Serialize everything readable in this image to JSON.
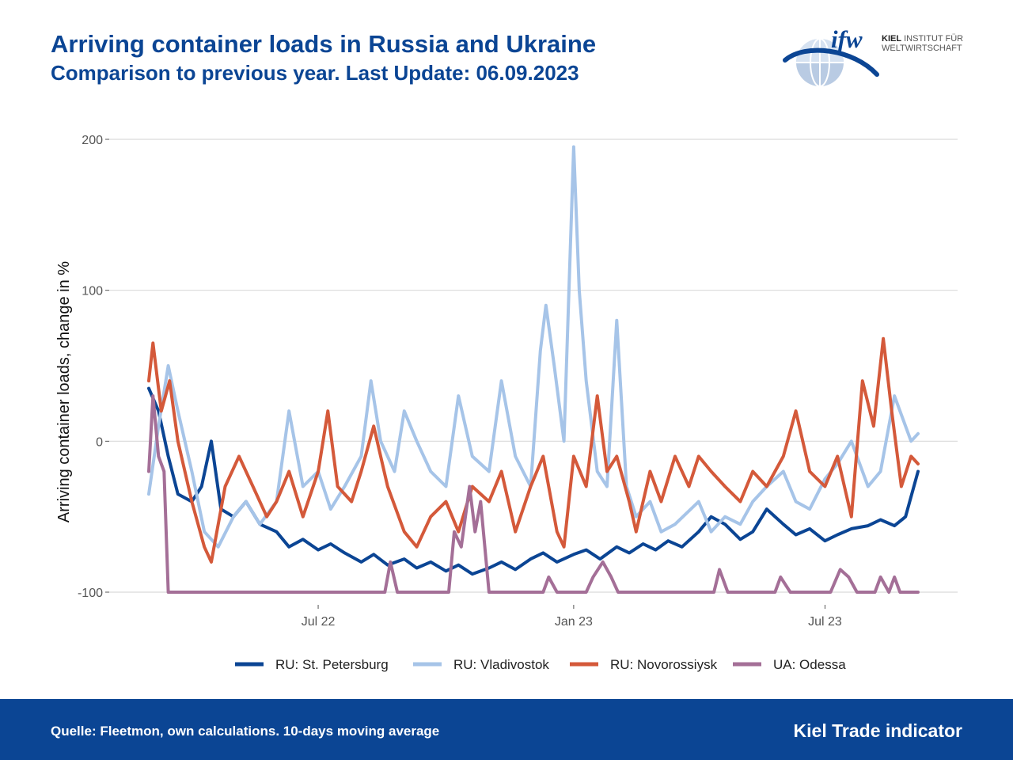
{
  "header": {
    "title": "Arriving container loads in Russia and Ukraine",
    "subtitle": "Comparison to previous year. Last Update: 06.09.2023"
  },
  "logo": {
    "mark": "ifw",
    "line1_bold": "KIEL",
    "line1_rest": " INSTITUT FÜR",
    "line2": "WELTWIRTSCHAFT",
    "icon": "globe-icon"
  },
  "footer": {
    "source": "Quelle: Fleetmon, own calculations. 10-days moving average",
    "brand": "Kiel Trade indicator"
  },
  "colors": {
    "st_petersburg": "#0b4594",
    "vladivostok": "#a6c4e8",
    "novorossiysk": "#d4593a",
    "odessa": "#a46f97",
    "brand_blue": "#0b4594",
    "grid": "#d9d9d9"
  },
  "chart_data": {
    "type": "line",
    "ylabel": "Arriving container loads, change in %",
    "xlabel": "",
    "ylim": [
      -100,
      200
    ],
    "yticks": [
      200,
      100,
      0,
      -100
    ],
    "ytick_labels": [
      "200",
      "100",
      "0",
      "-100"
    ],
    "xticks": [
      "2022-07-01",
      "2023-01-01",
      "2023-07-01"
    ],
    "xtick_labels": [
      "Jul 22",
      "Jan 23",
      "Jul 23"
    ],
    "xrange": [
      "2022-03-01",
      "2023-09-06"
    ],
    "grid": "horizontal",
    "legend_position": "bottom",
    "series": [
      {
        "name": "RU: St. Petersburg",
        "points": [
          [
            "2022-03-01",
            35
          ],
          [
            "2022-03-08",
            20
          ],
          [
            "2022-03-15",
            -10
          ],
          [
            "2022-03-22",
            -35
          ],
          [
            "2022-04-01",
            -40
          ],
          [
            "2022-04-08",
            -30
          ],
          [
            "2022-04-15",
            0
          ],
          [
            "2022-04-22",
            -45
          ],
          [
            "2022-05-01",
            -50
          ],
          [
            "2022-05-10",
            -40
          ],
          [
            "2022-05-20",
            -55
          ],
          [
            "2022-06-01",
            -60
          ],
          [
            "2022-06-10",
            -70
          ],
          [
            "2022-06-20",
            -65
          ],
          [
            "2022-07-01",
            -72
          ],
          [
            "2022-07-10",
            -68
          ],
          [
            "2022-07-20",
            -74
          ],
          [
            "2022-08-01",
            -80
          ],
          [
            "2022-08-10",
            -75
          ],
          [
            "2022-08-20",
            -82
          ],
          [
            "2022-09-01",
            -78
          ],
          [
            "2022-09-10",
            -84
          ],
          [
            "2022-09-20",
            -80
          ],
          [
            "2022-10-01",
            -86
          ],
          [
            "2022-10-10",
            -82
          ],
          [
            "2022-10-20",
            -88
          ],
          [
            "2022-11-01",
            -84
          ],
          [
            "2022-11-10",
            -80
          ],
          [
            "2022-11-20",
            -85
          ],
          [
            "2022-12-01",
            -78
          ],
          [
            "2022-12-10",
            -74
          ],
          [
            "2022-12-20",
            -80
          ],
          [
            "2023-01-01",
            -75
          ],
          [
            "2023-01-10",
            -72
          ],
          [
            "2023-01-20",
            -78
          ],
          [
            "2023-02-01",
            -70
          ],
          [
            "2023-02-10",
            -74
          ],
          [
            "2023-02-20",
            -68
          ],
          [
            "2023-03-01",
            -72
          ],
          [
            "2023-03-10",
            -66
          ],
          [
            "2023-03-20",
            -70
          ],
          [
            "2023-04-01",
            -60
          ],
          [
            "2023-04-10",
            -50
          ],
          [
            "2023-04-20",
            -55
          ],
          [
            "2023-05-01",
            -65
          ],
          [
            "2023-05-10",
            -60
          ],
          [
            "2023-05-20",
            -45
          ],
          [
            "2023-06-01",
            -55
          ],
          [
            "2023-06-10",
            -62
          ],
          [
            "2023-06-20",
            -58
          ],
          [
            "2023-07-01",
            -66
          ],
          [
            "2023-07-10",
            -62
          ],
          [
            "2023-07-20",
            -58
          ],
          [
            "2023-08-01",
            -56
          ],
          [
            "2023-08-10",
            -52
          ],
          [
            "2023-08-20",
            -56
          ],
          [
            "2023-08-28",
            -50
          ],
          [
            "2023-09-06",
            -20
          ]
        ]
      },
      {
        "name": "RU: Vladivostok",
        "points": [
          [
            "2022-03-01",
            -35
          ],
          [
            "2022-03-08",
            10
          ],
          [
            "2022-03-15",
            50
          ],
          [
            "2022-03-22",
            20
          ],
          [
            "2022-04-01",
            -20
          ],
          [
            "2022-04-10",
            -60
          ],
          [
            "2022-04-20",
            -70
          ],
          [
            "2022-05-01",
            -50
          ],
          [
            "2022-05-10",
            -40
          ],
          [
            "2022-05-20",
            -55
          ],
          [
            "2022-06-01",
            -40
          ],
          [
            "2022-06-10",
            20
          ],
          [
            "2022-06-20",
            -30
          ],
          [
            "2022-07-01",
            -20
          ],
          [
            "2022-07-10",
            -45
          ],
          [
            "2022-07-20",
            -30
          ],
          [
            "2022-08-01",
            -10
          ],
          [
            "2022-08-08",
            40
          ],
          [
            "2022-08-15",
            0
          ],
          [
            "2022-08-25",
            -20
          ],
          [
            "2022-09-01",
            20
          ],
          [
            "2022-09-10",
            0
          ],
          [
            "2022-09-20",
            -20
          ],
          [
            "2022-10-01",
            -30
          ],
          [
            "2022-10-10",
            30
          ],
          [
            "2022-10-20",
            -10
          ],
          [
            "2022-11-01",
            -20
          ],
          [
            "2022-11-10",
            40
          ],
          [
            "2022-11-20",
            -10
          ],
          [
            "2022-12-01",
            -30
          ],
          [
            "2022-12-08",
            60
          ],
          [
            "2022-12-12",
            90
          ],
          [
            "2022-12-18",
            50
          ],
          [
            "2022-12-25",
            0
          ],
          [
            "2023-01-01",
            195
          ],
          [
            "2023-01-05",
            100
          ],
          [
            "2023-01-10",
            40
          ],
          [
            "2023-01-18",
            -20
          ],
          [
            "2023-01-25",
            -30
          ],
          [
            "2023-02-01",
            80
          ],
          [
            "2023-02-08",
            -30
          ],
          [
            "2023-02-15",
            -50
          ],
          [
            "2023-02-25",
            -40
          ],
          [
            "2023-03-05",
            -60
          ],
          [
            "2023-03-15",
            -55
          ],
          [
            "2023-04-01",
            -40
          ],
          [
            "2023-04-10",
            -60
          ],
          [
            "2023-04-20",
            -50
          ],
          [
            "2023-05-01",
            -55
          ],
          [
            "2023-05-10",
            -40
          ],
          [
            "2023-05-20",
            -30
          ],
          [
            "2023-06-01",
            -20
          ],
          [
            "2023-06-10",
            -40
          ],
          [
            "2023-06-20",
            -45
          ],
          [
            "2023-07-01",
            -25
          ],
          [
            "2023-07-10",
            -15
          ],
          [
            "2023-07-20",
            0
          ],
          [
            "2023-08-01",
            -30
          ],
          [
            "2023-08-10",
            -20
          ],
          [
            "2023-08-20",
            30
          ],
          [
            "2023-09-01",
            0
          ],
          [
            "2023-09-06",
            5
          ]
        ]
      },
      {
        "name": "RU: Novorossiysk",
        "points": [
          [
            "2022-03-01",
            40
          ],
          [
            "2022-03-04",
            65
          ],
          [
            "2022-03-10",
            20
          ],
          [
            "2022-03-16",
            40
          ],
          [
            "2022-03-22",
            0
          ],
          [
            "2022-04-01",
            -40
          ],
          [
            "2022-04-10",
            -70
          ],
          [
            "2022-04-15",
            -80
          ],
          [
            "2022-04-25",
            -30
          ],
          [
            "2022-05-05",
            -10
          ],
          [
            "2022-05-15",
            -30
          ],
          [
            "2022-05-25",
            -50
          ],
          [
            "2022-06-01",
            -40
          ],
          [
            "2022-06-10",
            -20
          ],
          [
            "2022-06-20",
            -50
          ],
          [
            "2022-07-01",
            -20
          ],
          [
            "2022-07-08",
            20
          ],
          [
            "2022-07-15",
            -30
          ],
          [
            "2022-07-25",
            -40
          ],
          [
            "2022-08-01",
            -20
          ],
          [
            "2022-08-10",
            10
          ],
          [
            "2022-08-20",
            -30
          ],
          [
            "2022-09-01",
            -60
          ],
          [
            "2022-09-10",
            -70
          ],
          [
            "2022-09-20",
            -50
          ],
          [
            "2022-10-01",
            -40
          ],
          [
            "2022-10-10",
            -60
          ],
          [
            "2022-10-20",
            -30
          ],
          [
            "2022-11-01",
            -40
          ],
          [
            "2022-11-10",
            -20
          ],
          [
            "2022-11-20",
            -60
          ],
          [
            "2022-12-01",
            -30
          ],
          [
            "2022-12-10",
            -10
          ],
          [
            "2022-12-20",
            -60
          ],
          [
            "2022-12-25",
            -70
          ],
          [
            "2023-01-01",
            -10
          ],
          [
            "2023-01-10",
            -30
          ],
          [
            "2023-01-18",
            30
          ],
          [
            "2023-01-25",
            -20
          ],
          [
            "2023-02-01",
            -10
          ],
          [
            "2023-02-10",
            -40
          ],
          [
            "2023-02-15",
            -60
          ],
          [
            "2023-02-25",
            -20
          ],
          [
            "2023-03-05",
            -40
          ],
          [
            "2023-03-15",
            -10
          ],
          [
            "2023-03-25",
            -30
          ],
          [
            "2023-04-01",
            -10
          ],
          [
            "2023-04-10",
            -20
          ],
          [
            "2023-04-20",
            -30
          ],
          [
            "2023-05-01",
            -40
          ],
          [
            "2023-05-10",
            -20
          ],
          [
            "2023-05-20",
            -30
          ],
          [
            "2023-06-01",
            -10
          ],
          [
            "2023-06-10",
            20
          ],
          [
            "2023-06-20",
            -20
          ],
          [
            "2023-07-01",
            -30
          ],
          [
            "2023-07-10",
            -10
          ],
          [
            "2023-07-20",
            -50
          ],
          [
            "2023-07-28",
            40
          ],
          [
            "2023-08-05",
            10
          ],
          [
            "2023-08-12",
            68
          ],
          [
            "2023-08-18",
            20
          ],
          [
            "2023-08-25",
            -30
          ],
          [
            "2023-09-01",
            -10
          ],
          [
            "2023-09-06",
            -15
          ]
        ]
      },
      {
        "name": "UA: Odessa",
        "points": [
          [
            "2022-03-01",
            -20
          ],
          [
            "2022-03-04",
            30
          ],
          [
            "2022-03-08",
            -10
          ],
          [
            "2022-03-12",
            -20
          ],
          [
            "2022-03-15",
            -100
          ],
          [
            "2022-08-18",
            -100
          ],
          [
            "2022-08-22",
            -80
          ],
          [
            "2022-08-27",
            -100
          ],
          [
            "2022-10-03",
            -100
          ],
          [
            "2022-10-07",
            -60
          ],
          [
            "2022-10-12",
            -70
          ],
          [
            "2022-10-18",
            -30
          ],
          [
            "2022-10-22",
            -60
          ],
          [
            "2022-10-26",
            -40
          ],
          [
            "2022-11-01",
            -100
          ],
          [
            "2022-12-10",
            -100
          ],
          [
            "2022-12-14",
            -90
          ],
          [
            "2022-12-20",
            -100
          ],
          [
            "2023-01-10",
            -100
          ],
          [
            "2023-01-15",
            -90
          ],
          [
            "2023-01-22",
            -80
          ],
          [
            "2023-01-28",
            -90
          ],
          [
            "2023-02-02",
            -100
          ],
          [
            "2023-04-12",
            -100
          ],
          [
            "2023-04-16",
            -85
          ],
          [
            "2023-04-22",
            -100
          ],
          [
            "2023-05-26",
            -100
          ],
          [
            "2023-05-30",
            -90
          ],
          [
            "2023-06-06",
            -100
          ],
          [
            "2023-07-05",
            -100
          ],
          [
            "2023-07-12",
            -85
          ],
          [
            "2023-07-18",
            -90
          ],
          [
            "2023-07-24",
            -100
          ],
          [
            "2023-08-06",
            -100
          ],
          [
            "2023-08-10",
            -90
          ],
          [
            "2023-08-16",
            -100
          ],
          [
            "2023-08-20",
            -90
          ],
          [
            "2023-08-24",
            -100
          ],
          [
            "2023-09-06",
            -100
          ]
        ]
      }
    ]
  }
}
